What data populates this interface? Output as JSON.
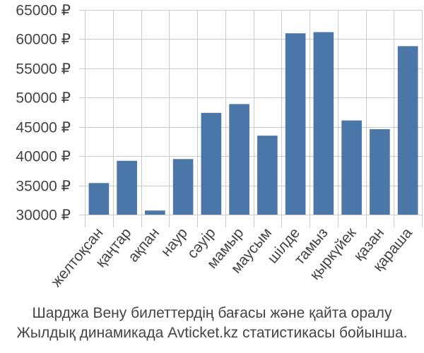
{
  "chart_data": {
    "type": "bar",
    "categories": [
      "желтоқсан",
      "қаңтар",
      "ақпан",
      "наур",
      "сәуір",
      "мамыр",
      "маусым",
      "шілде",
      "тамыз",
      "қыркүйек",
      "қазан",
      "қараша"
    ],
    "values": [
      35400,
      39200,
      30700,
      39500,
      47400,
      48900,
      43500,
      61000,
      61200,
      46100,
      44600,
      58800
    ],
    "ylim": [
      30000,
      65000
    ],
    "yticks": [
      30000,
      35000,
      40000,
      45000,
      50000,
      55000,
      60000,
      65000
    ],
    "ytick_labels": [
      "30000 ₽",
      "35000 ₽",
      "40000 ₽",
      "45000 ₽",
      "50000 ₽",
      "55000 ₽",
      "60000 ₽",
      "65000 ₽"
    ],
    "grid": true,
    "bar_color": "#4a76a8",
    "grid_color": "#cccccc"
  },
  "caption": {
    "line1": "Шарджа Вену билеттердің бағасы және қайта оралу",
    "line2": "Жылдық динамикада Avticket.kz статистикасы бойынша."
  }
}
